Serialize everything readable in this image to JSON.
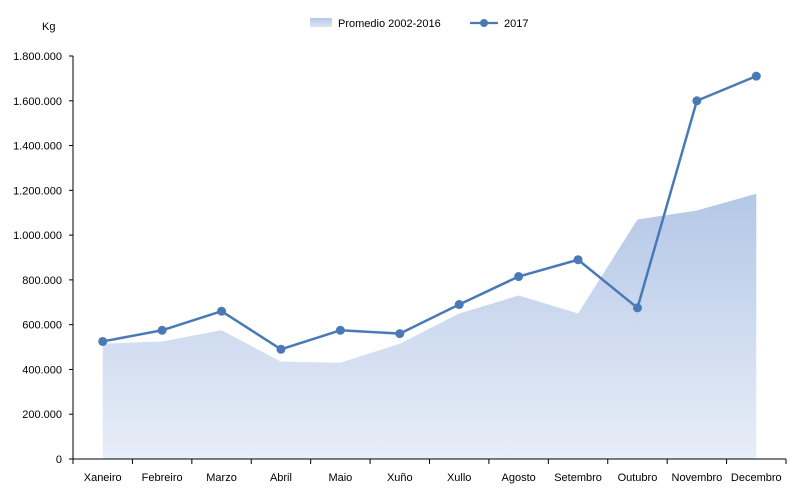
{
  "chart_data": {
    "type": "area",
    "ylabel": "Kg",
    "categories": [
      "Xaneiro",
      "Febreiro",
      "Marzo",
      "Abril",
      "Maio",
      "Xuño",
      "Xullo",
      "Agosto",
      "Setembro",
      "Outubro",
      "Novembro",
      "Decembro"
    ],
    "yticks": [
      "0",
      "200.000",
      "400.000",
      "600.000",
      "800.000",
      "1.000.000",
      "1.200.000",
      "1.400.000",
      "1.600.000",
      "1.800.000"
    ],
    "ylim": [
      0,
      1800000
    ],
    "grid": false,
    "legend_position": "top",
    "series": [
      {
        "name": "Promedio 2002-2016",
        "type": "area",
        "color": "#b4c7e7",
        "values": [
          515000,
          525000,
          575000,
          435000,
          430000,
          515000,
          650000,
          730000,
          650000,
          1070000,
          1110000,
          1185000
        ]
      },
      {
        "name": "2017",
        "type": "line",
        "color": "#4a7ab5",
        "values": [
          525000,
          575000,
          660000,
          490000,
          575000,
          560000,
          690000,
          815000,
          890000,
          675000,
          1600000,
          1710000
        ]
      }
    ]
  }
}
